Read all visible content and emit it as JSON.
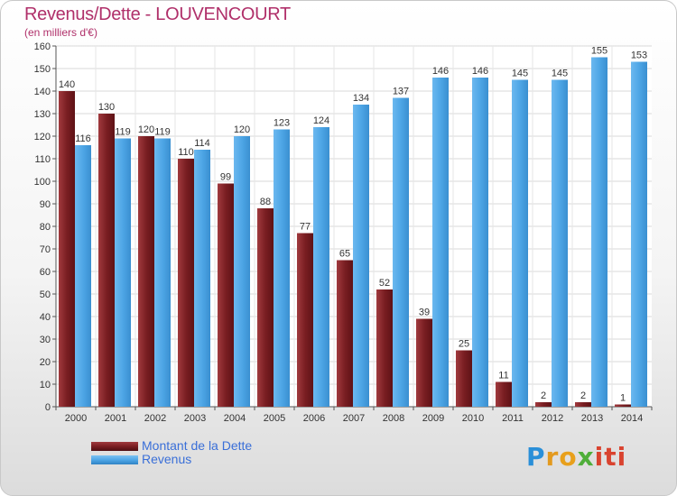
{
  "chart_data": {
    "type": "bar",
    "title": "Revenus/Dette - LOUVENCOURT",
    "subtitle": "(en milliers d'€)",
    "categories": [
      "2000",
      "2001",
      "2002",
      "2003",
      "2004",
      "2005",
      "2006",
      "2007",
      "2008",
      "2009",
      "2010",
      "2011",
      "2012",
      "2013",
      "2014"
    ],
    "series": [
      {
        "name": "Montant de la Dette",
        "color": "#7a1e22",
        "values": [
          140,
          130,
          120,
          110,
          99,
          88,
          77,
          65,
          52,
          39,
          25,
          11,
          2,
          2,
          1
        ]
      },
      {
        "name": "Revenus",
        "color": "#4ea6e6",
        "values": [
          116,
          119,
          119,
          114,
          120,
          123,
          124,
          134,
          137,
          146,
          146,
          145,
          145,
          155,
          153
        ]
      }
    ],
    "ylim": [
      0,
      160
    ],
    "yticks": [
      0,
      10,
      20,
      30,
      40,
      50,
      60,
      70,
      80,
      90,
      100,
      110,
      120,
      130,
      140,
      150,
      160
    ],
    "grid": true,
    "legend_position": "bottom-left"
  },
  "logo": {
    "letters": [
      "P",
      "r",
      "o",
      "x",
      "i",
      "t",
      "i"
    ],
    "colors": [
      "#2a8fd8",
      "#e39a1f",
      "#e8a01c",
      "#4fae3a",
      "#d9432f",
      "#d9432f",
      "#d9432f"
    ]
  }
}
